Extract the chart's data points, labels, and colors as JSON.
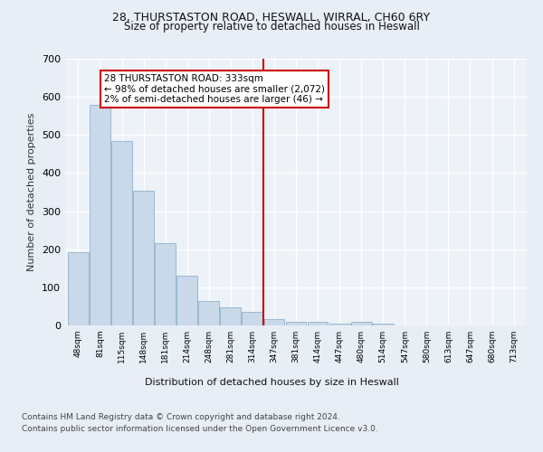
{
  "title_line1": "28, THURSTASTON ROAD, HESWALL, WIRRAL, CH60 6RY",
  "title_line2": "Size of property relative to detached houses in Heswall",
  "xlabel": "Distribution of detached houses by size in Heswall",
  "ylabel": "Number of detached properties",
  "bar_color": "#c9d9ea",
  "bar_edge_color": "#9ab8d0",
  "categories": [
    "48sqm",
    "81sqm",
    "115sqm",
    "148sqm",
    "181sqm",
    "214sqm",
    "248sqm",
    "281sqm",
    "314sqm",
    "347sqm",
    "381sqm",
    "414sqm",
    "447sqm",
    "480sqm",
    "514sqm",
    "547sqm",
    "580sqm",
    "613sqm",
    "647sqm",
    "680sqm",
    "713sqm"
  ],
  "values": [
    193,
    580,
    484,
    354,
    216,
    130,
    65,
    48,
    35,
    16,
    9,
    10,
    5,
    10,
    5,
    0,
    0,
    0,
    0,
    0,
    0
  ],
  "vline_x": 8.5,
  "vline_color": "#cc0000",
  "annotation_text": "28 THURSTASTON ROAD: 333sqm\n← 98% of detached houses are smaller (2,072)\n2% of semi-detached houses are larger (46) →",
  "annotation_box_color": "#ffffff",
  "annotation_box_edge": "#cc0000",
  "ylim": [
    0,
    700
  ],
  "yticks": [
    0,
    100,
    200,
    300,
    400,
    500,
    600,
    700
  ],
  "footer_line1": "Contains HM Land Registry data © Crown copyright and database right 2024.",
  "footer_line2": "Contains public sector information licensed under the Open Government Licence v3.0.",
  "bg_color": "#e8eef6",
  "plot_bg_color": "#edf1f8"
}
